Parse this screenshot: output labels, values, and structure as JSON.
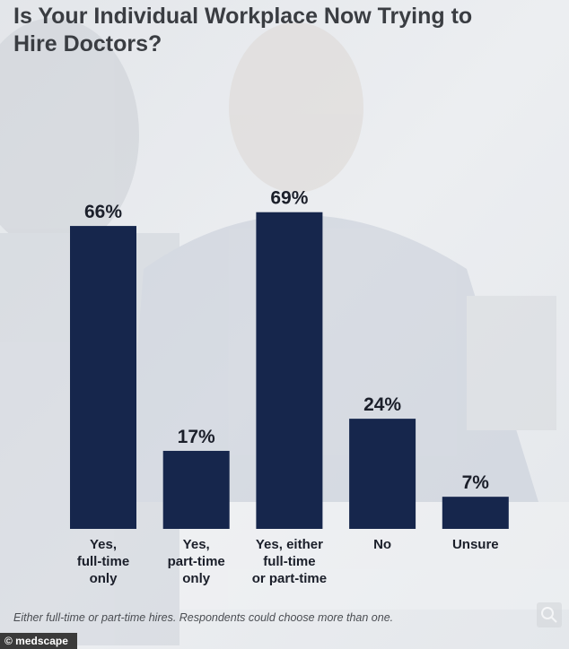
{
  "chart_data": {
    "type": "bar",
    "title": "Is Your Individual Workplace Now Trying to\nHire Doctors?",
    "categories": [
      "Yes,\nfull-time\nonly",
      "Yes,\npart-time\nonly",
      "Yes, either\nfull-time\nor part-time",
      "No",
      "Unsure"
    ],
    "values": [
      66,
      17,
      69,
      24,
      7
    ],
    "value_labels": [
      "66%",
      "17%",
      "69%",
      "24%",
      "7%"
    ],
    "color": "#16264c",
    "footnote": "Either full-time or part-time hires. Respondents could choose more than one.",
    "source": "© medscape"
  }
}
